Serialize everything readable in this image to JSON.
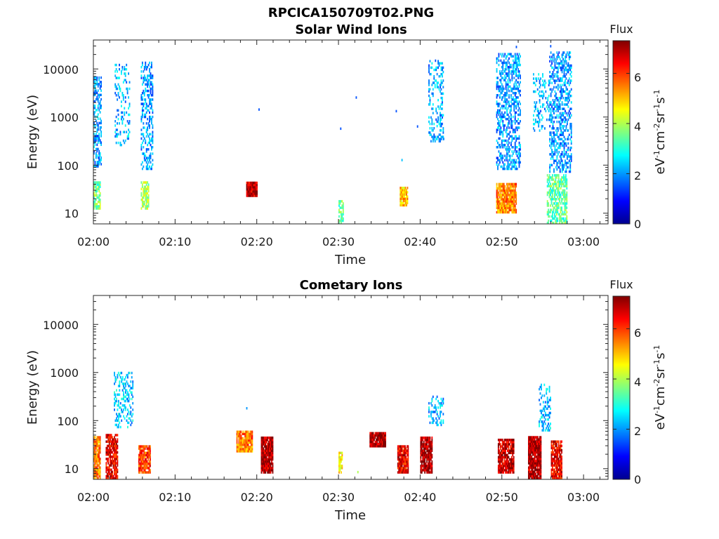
{
  "figure": {
    "title": "RPCICA150709T02.PNG"
  },
  "chart_data": [
    {
      "type": "heatmap",
      "title": "Solar Wind Ions",
      "xlabel": "Time",
      "ylabel": "Energy (eV)",
      "x_tick_labels": [
        "02:00",
        "02:10",
        "02:20",
        "02:30",
        "02:40",
        "02:50",
        "03:00"
      ],
      "x_range_minutes": [
        0,
        63
      ],
      "y_scale": "log",
      "y_range": [
        6,
        40000
      ],
      "y_tick_labels": [
        "10",
        "100",
        "1000",
        "10000"
      ],
      "colorbar": {
        "label": "Flux",
        "unit_label": "eV-1cm-2sr-1s-1",
        "range": [
          0,
          7.3
        ],
        "tick_labels": [
          "0",
          "2",
          "4",
          "6"
        ],
        "colormap": "jet"
      },
      "regions": [
        {
          "t": [
            0.0,
            0.9
          ],
          "e": [
            90,
            7000
          ],
          "flux": 2.0,
          "density": 0.45
        },
        {
          "t": [
            0.0,
            0.8
          ],
          "e": [
            12,
            45
          ],
          "flux": 3.6,
          "density": 0.7
        },
        {
          "t": [
            2.6,
            4.4
          ],
          "e": [
            250,
            12000
          ],
          "flux": 2.2,
          "density": 0.2
        },
        {
          "t": [
            5.8,
            7.3
          ],
          "e": [
            80,
            14000
          ],
          "flux": 2.0,
          "density": 0.4
        },
        {
          "t": [
            5.8,
            6.7
          ],
          "e": [
            12,
            45
          ],
          "flux": 4.0,
          "density": 0.7
        },
        {
          "t": [
            18.7,
            20.0
          ],
          "e": [
            22,
            42
          ],
          "flux": 6.8,
          "density": 1.0
        },
        {
          "t": [
            30.0,
            30.6
          ],
          "e": [
            6,
            18
          ],
          "flux": 3.5,
          "density": 0.6
        },
        {
          "t": [
            37.5,
            38.5
          ],
          "e": [
            14,
            35
          ],
          "flux": 5.0,
          "density": 0.9
        },
        {
          "t": [
            41.0,
            42.8
          ],
          "e": [
            300,
            14000
          ],
          "flux": 2.1,
          "density": 0.3
        },
        {
          "t": [
            49.3,
            52.3
          ],
          "e": [
            80,
            20000
          ],
          "flux": 2.0,
          "density": 0.45
        },
        {
          "t": [
            49.3,
            51.8
          ],
          "e": [
            10,
            40
          ],
          "flux": 5.5,
          "density": 0.85
        },
        {
          "t": [
            53.8,
            55.8
          ],
          "e": [
            500,
            8000
          ],
          "flux": 2.2,
          "density": 0.25
        },
        {
          "t": [
            55.8,
            58.5
          ],
          "e": [
            70,
            22000
          ],
          "flux": 2.0,
          "density": 0.45
        },
        {
          "t": [
            55.5,
            58.0
          ],
          "e": [
            6,
            60
          ],
          "flux": 3.4,
          "density": 0.6
        }
      ],
      "points": [
        {
          "t": 20.2,
          "e": 1350,
          "flux": 1.5
        },
        {
          "t": 30.2,
          "e": 540,
          "flux": 1.5
        },
        {
          "t": 32.1,
          "e": 2400,
          "flux": 1.5
        },
        {
          "t": 37.0,
          "e": 1250,
          "flux": 1.5
        },
        {
          "t": 39.6,
          "e": 600,
          "flux": 1.5
        },
        {
          "t": 37.7,
          "e": 120,
          "flux": 2.3
        },
        {
          "t": 41.8,
          "e": 14000,
          "flux": 1.5
        },
        {
          "t": 42.8,
          "e": 330,
          "flux": 1.8
        },
        {
          "t": 51.7,
          "e": 27000,
          "flux": 1.5
        },
        {
          "t": 55.9,
          "e": 28000,
          "flux": 1.5
        }
      ]
    },
    {
      "type": "heatmap",
      "title": "Cometary Ions",
      "xlabel": "Time",
      "ylabel": "Energy (eV)",
      "x_tick_labels": [
        "02:00",
        "02:10",
        "02:20",
        "02:30",
        "02:40",
        "02:50",
        "03:00"
      ],
      "x_range_minutes": [
        0,
        63
      ],
      "y_scale": "log",
      "y_range": [
        6,
        40000
      ],
      "y_tick_labels": [
        "10",
        "100",
        "1000",
        "10000"
      ],
      "colorbar": {
        "label": "Flux",
        "unit_label": "eV-1cm-2sr-1s-1",
        "range": [
          0,
          7.3
        ],
        "tick_labels": [
          "0",
          "2",
          "4",
          "6"
        ],
        "colormap": "jet"
      },
      "regions": [
        {
          "t": [
            0.0,
            0.8
          ],
          "e": [
            6,
            45
          ],
          "flux": 5.5,
          "density": 0.85
        },
        {
          "t": [
            1.5,
            3.0
          ],
          "e": [
            6,
            50
          ],
          "flux": 6.5,
          "density": 0.8
        },
        {
          "t": [
            2.5,
            4.8
          ],
          "e": [
            70,
            1000
          ],
          "flux": 2.4,
          "density": 0.3
        },
        {
          "t": [
            5.5,
            7.0
          ],
          "e": [
            8,
            30
          ],
          "flux": 6.0,
          "density": 0.85
        },
        {
          "t": [
            17.5,
            19.5
          ],
          "e": [
            22,
            60
          ],
          "flux": 5.5,
          "density": 0.9
        },
        {
          "t": [
            20.5,
            22.0
          ],
          "e": [
            8,
            45
          ],
          "flux": 7.0,
          "density": 0.95
        },
        {
          "t": [
            30.0,
            30.5
          ],
          "e": [
            8,
            22
          ],
          "flux": 4.5,
          "density": 0.7
        },
        {
          "t": [
            33.8,
            35.8
          ],
          "e": [
            28,
            55
          ],
          "flux": 7.0,
          "density": 0.95
        },
        {
          "t": [
            37.2,
            38.5
          ],
          "e": [
            8,
            30
          ],
          "flux": 6.5,
          "density": 0.9
        },
        {
          "t": [
            40.0,
            41.5
          ],
          "e": [
            8,
            45
          ],
          "flux": 7.0,
          "density": 0.85
        },
        {
          "t": [
            41.0,
            42.8
          ],
          "e": [
            70,
            320
          ],
          "flux": 2.2,
          "density": 0.3
        },
        {
          "t": [
            49.5,
            51.5
          ],
          "e": [
            8,
            40
          ],
          "flux": 6.8,
          "density": 0.85
        },
        {
          "t": [
            53.2,
            54.8
          ],
          "e": [
            6,
            45
          ],
          "flux": 7.0,
          "density": 0.9
        },
        {
          "t": [
            54.5,
            56.0
          ],
          "e": [
            60,
            550
          ],
          "flux": 2.3,
          "density": 0.35
        },
        {
          "t": [
            56.0,
            57.3
          ],
          "e": [
            6,
            35
          ],
          "flux": 6.5,
          "density": 0.85
        }
      ],
      "points": [
        {
          "t": 18.7,
          "e": 170,
          "flux": 2.0
        },
        {
          "t": 32.3,
          "e": 8,
          "flux": 4.0
        }
      ]
    }
  ]
}
